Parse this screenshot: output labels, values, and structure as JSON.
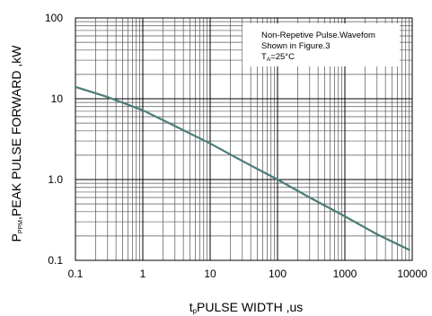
{
  "chart_data": {
    "type": "line",
    "title": "",
    "xlabel": "t",
    "xlabel_sub": "p",
    "xlabel_rest": "PULSE WIDTH ,us",
    "ylabel": "P",
    "ylabel_sub": "PPM",
    "ylabel_rest": ",PEAK PULSE  FORWARD ,kW",
    "x_scale": "log",
    "y_scale": "log",
    "xlim": [
      0.1,
      10000
    ],
    "ylim": [
      0.1,
      100
    ],
    "grid": true,
    "x_ticks": [
      {
        "value": 0.1,
        "label": "0.1"
      },
      {
        "value": 1,
        "label": "1"
      },
      {
        "value": 10,
        "label": "10"
      },
      {
        "value": 100,
        "label": "100"
      },
      {
        "value": 1000,
        "label": "1000"
      },
      {
        "value": 10000,
        "label": "10000"
      }
    ],
    "y_ticks": [
      {
        "value": 0.1,
        "label": "0.1"
      },
      {
        "value": 1,
        "label": "1.0"
      },
      {
        "value": 10,
        "label": "10"
      },
      {
        "value": 100,
        "label": "100"
      }
    ],
    "series": [
      {
        "color": "#4a7d78",
        "x": [
          0.1,
          0.3,
          1,
          3,
          10,
          30,
          100,
          300,
          1000,
          3000,
          9000
        ],
        "y": [
          14,
          10.5,
          7.2,
          4.6,
          2.8,
          1.7,
          1.0,
          0.6,
          0.35,
          0.21,
          0.135
        ]
      }
    ],
    "annotation": {
      "line1": "Non-Repetive  Pulse.Wavefom",
      "line2": "Shown in Figure.3",
      "line3_main": "T",
      "line3_sub": "A",
      "line3_rest": "=25°C"
    }
  }
}
